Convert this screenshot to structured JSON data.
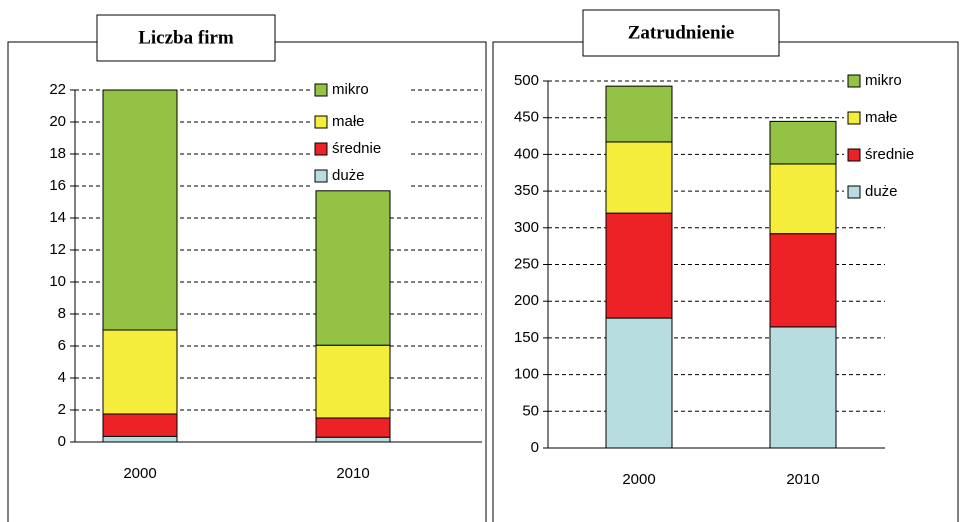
{
  "chart_data": [
    {
      "type": "bar",
      "stacked": true,
      "title": "Liczba firm",
      "categories": [
        "2000",
        "2010"
      ],
      "series": [
        {
          "name": "duże",
          "color": "#b7dde1",
          "values": [
            0.35,
            0.3
          ]
        },
        {
          "name": "średnie",
          "color": "#ec2227",
          "values": [
            1.4,
            1.2
          ]
        },
        {
          "name": "małe",
          "color": "#f5ed3b",
          "values": [
            5.25,
            4.55
          ]
        },
        {
          "name": "mikro",
          "color": "#93c244",
          "values": [
            15,
            9.65
          ]
        }
      ],
      "ylim": [
        0,
        22
      ],
      "yticks": [
        0,
        2,
        4,
        6,
        8,
        10,
        12,
        14,
        16,
        18,
        20,
        22
      ],
      "grid": true,
      "legend": "top-right"
    },
    {
      "type": "bar",
      "stacked": true,
      "title": "Zatrudnienie",
      "categories": [
        "2000",
        "2010"
      ],
      "series": [
        {
          "name": "duże",
          "color": "#b7dde1",
          "values": [
            177,
            165
          ]
        },
        {
          "name": "średnie",
          "color": "#ec2227",
          "values": [
            143,
            127
          ]
        },
        {
          "name": "małe",
          "color": "#f5ed3b",
          "values": [
            97,
            95
          ]
        },
        {
          "name": "mikro",
          "color": "#93c244",
          "values": [
            76,
            58
          ]
        }
      ],
      "ylim": [
        0,
        500
      ],
      "yticks": [
        0,
        50,
        100,
        150,
        200,
        250,
        300,
        350,
        400,
        450,
        500
      ],
      "grid": true,
      "legend": "top-right"
    }
  ]
}
